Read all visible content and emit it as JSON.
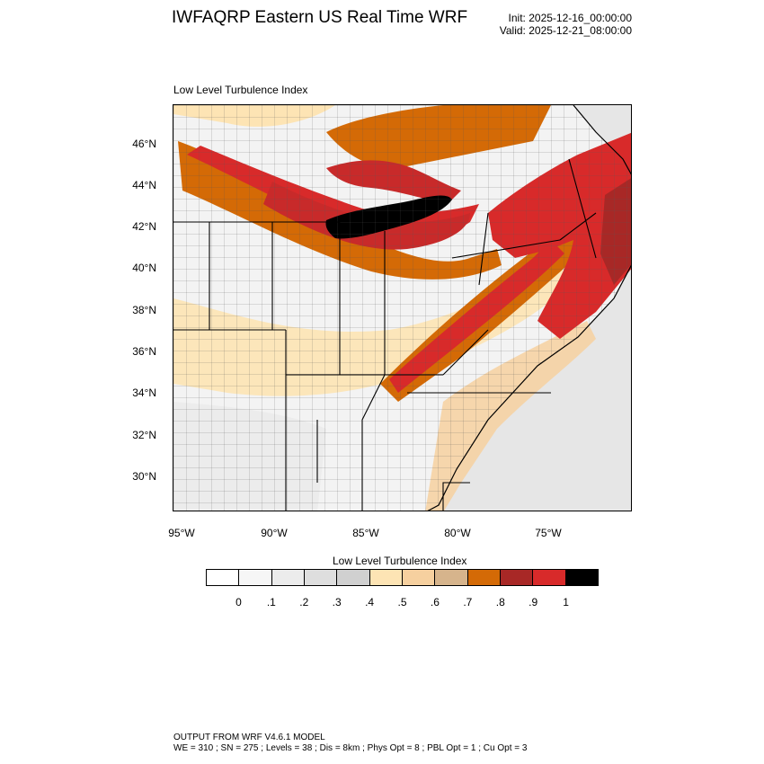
{
  "header": {
    "title": "IWFAQRP Eastern US Real Time WRF",
    "init": "Init: 2025-12-16_00:00:00",
    "valid": "Valid: 2025-12-21_08:00:00"
  },
  "plot": {
    "subtitle": "Low Level Turbulence Index",
    "lat_labels": [
      "46°N",
      "44°N",
      "42°N",
      "40°N",
      "38°N",
      "36°N",
      "34°N",
      "32°N",
      "30°N"
    ],
    "lon_labels": [
      "95°W",
      "90°W",
      "85°W",
      "80°W",
      "75°W"
    ]
  },
  "legend": {
    "title": "Low Level Turbulence Index",
    "labels": [
      "0",
      ".1",
      ".2",
      ".3",
      ".4",
      ".5",
      ".6",
      ".7",
      ".8",
      ".9",
      "1"
    ],
    "colors": [
      "#ffffff",
      "#f6f6f6",
      "#ececec",
      "#dedede",
      "#d0d0d0",
      "#fde4b4",
      "#f6d09f",
      "#d6b48c",
      "#d46a06",
      "#a82826",
      "#d82a2a",
      "#000000"
    ]
  },
  "footer": {
    "line1": "OUTPUT FROM WRF V4.6.1 MODEL",
    "line2": "WE = 310 ; SN = 275 ; Levels = 38 ; Dis = 8km ; Phys Opt = 8 ; PBL Opt = 1 ; Cu Opt = 3"
  }
}
